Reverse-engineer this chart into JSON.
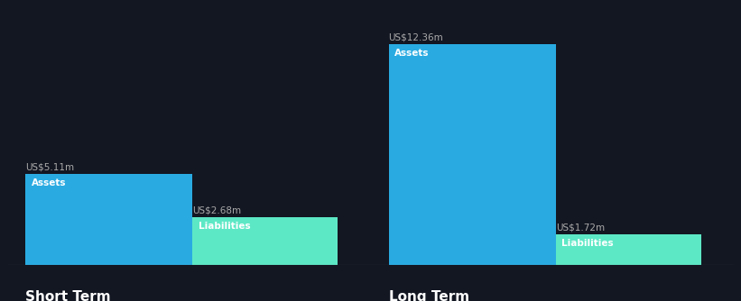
{
  "background_color": "#131722",
  "text_color": "#ffffff",
  "label_color": "#aaaaaa",
  "assets_color": "#29abe2",
  "liabilities_color": "#5de8c5",
  "short_term": {
    "assets_value": 5.11,
    "liabilities_value": 2.68,
    "assets_label": "US$5.11m",
    "liabilities_label": "US$2.68m",
    "group_label": "Short Term"
  },
  "long_term": {
    "assets_value": 12.36,
    "liabilities_value": 1.72,
    "assets_label": "US$12.36m",
    "liabilities_label": "US$1.72m",
    "group_label": "Long Term"
  },
  "bar_label_assets": "Assets",
  "bar_label_liabilities": "Liabilities",
  "max_value": 13.5,
  "value_label_fontsize": 7.5,
  "inside_label_fontsize": 7.5,
  "group_label_fontsize": 11
}
